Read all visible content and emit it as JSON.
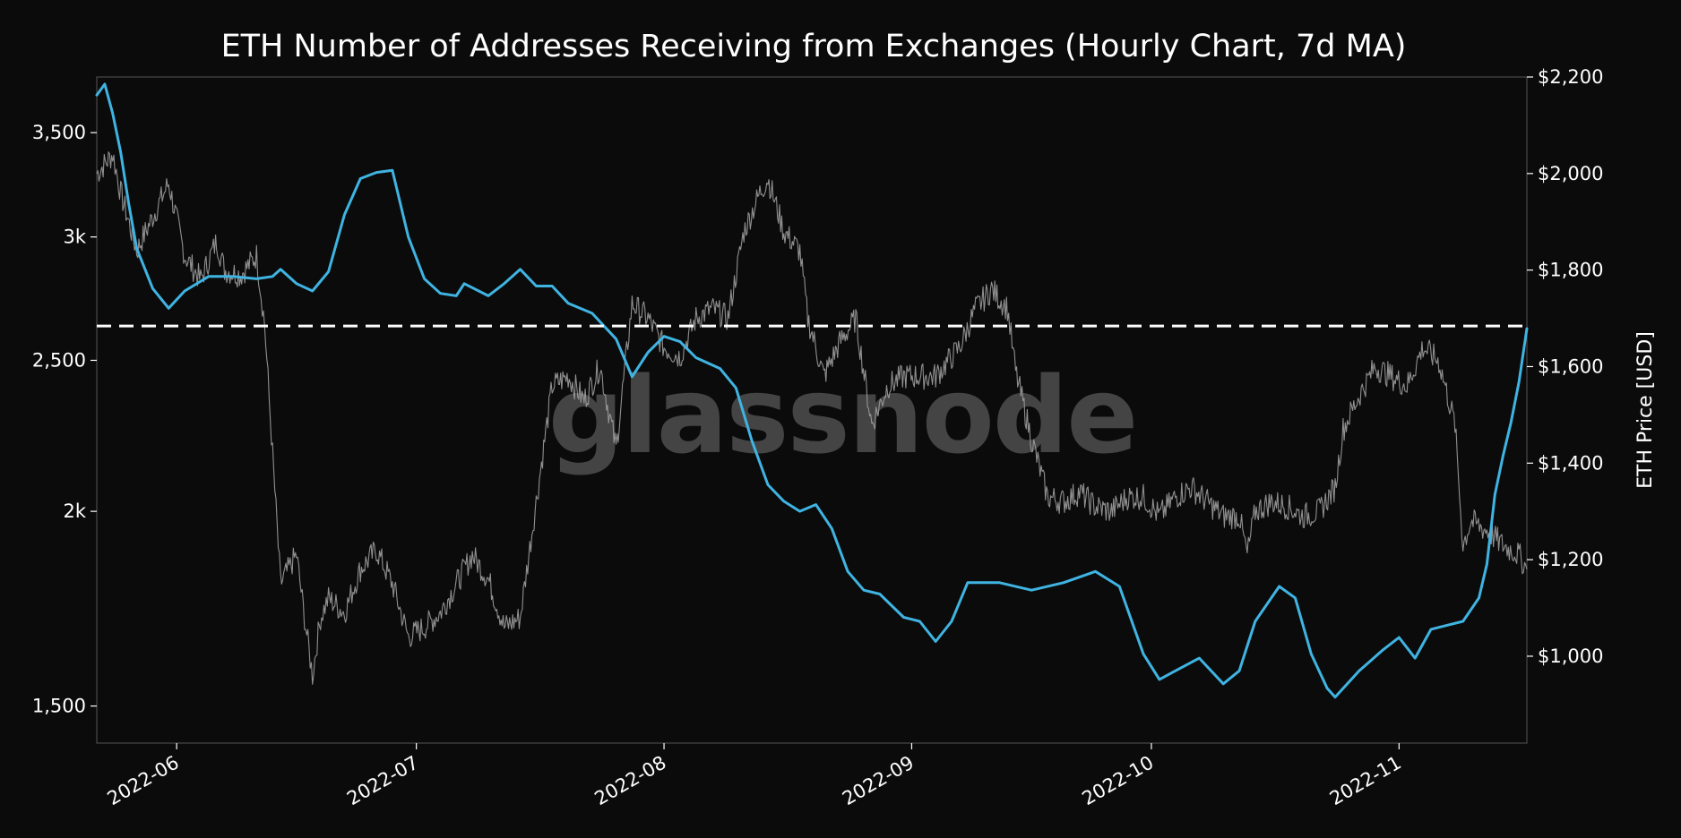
{
  "chart_data": {
    "type": "line",
    "title": "ETH Number of Addresses Receiving from Exchanges (Hourly Chart, 7d MA)",
    "watermark": "glassnode",
    "xlabel": "",
    "y_left": {
      "label": "",
      "scale": "log",
      "range": [
        1420,
        3800
      ],
      "ticks": [
        1500,
        2000,
        2500,
        3000,
        3500
      ],
      "tick_labels": [
        "1,500",
        "2k",
        "2,500",
        "3k",
        "3,500"
      ]
    },
    "y_right": {
      "label": "ETH Price [USD]",
      "scale": "linear",
      "range": [
        820,
        2200
      ],
      "ticks": [
        1000,
        1200,
        1400,
        1600,
        1800,
        2000,
        2200
      ],
      "tick_labels": [
        "$1,000",
        "$1,200",
        "$1,400",
        "$1,600",
        "$1,800",
        "$2,000",
        "$2,200"
      ]
    },
    "x_range": [
      "2022-05-22",
      "2022-11-17"
    ],
    "x_ticks": [
      "2022-06-01",
      "2022-07-01",
      "2022-08-01",
      "2022-09-01",
      "2022-10-01",
      "2022-11-01"
    ],
    "x_tick_labels": [
      "2022-06",
      "2022-07",
      "2022-08",
      "2022-09",
      "2022-10",
      "2022-11"
    ],
    "reference_line": {
      "axis": "left",
      "value": 2630,
      "style": "dashed",
      "color": "#ffffff"
    },
    "series": [
      {
        "axis": "left",
        "color": "#3fb4e2",
        "points": [
          [
            "2022-05-22",
            3700
          ],
          [
            "2022-05-23",
            3760
          ],
          [
            "2022-05-24",
            3600
          ],
          [
            "2022-05-25",
            3400
          ],
          [
            "2022-05-26",
            3150
          ],
          [
            "2022-05-27",
            2950
          ],
          [
            "2022-05-29",
            2780
          ],
          [
            "2022-05-31",
            2700
          ],
          [
            "2022-06-02",
            2770
          ],
          [
            "2022-06-05",
            2830
          ],
          [
            "2022-06-08",
            2830
          ],
          [
            "2022-06-11",
            2820
          ],
          [
            "2022-06-13",
            2830
          ],
          [
            "2022-06-14",
            2860
          ],
          [
            "2022-06-16",
            2800
          ],
          [
            "2022-06-18",
            2770
          ],
          [
            "2022-06-20",
            2850
          ],
          [
            "2022-06-22",
            3100
          ],
          [
            "2022-06-24",
            3270
          ],
          [
            "2022-06-26",
            3300
          ],
          [
            "2022-06-28",
            3310
          ],
          [
            "2022-06-30",
            3000
          ],
          [
            "2022-07-02",
            2820
          ],
          [
            "2022-07-04",
            2760
          ],
          [
            "2022-07-06",
            2750
          ],
          [
            "2022-07-07",
            2800
          ],
          [
            "2022-07-10",
            2750
          ],
          [
            "2022-07-12",
            2800
          ],
          [
            "2022-07-14",
            2860
          ],
          [
            "2022-07-16",
            2790
          ],
          [
            "2022-07-18",
            2790
          ],
          [
            "2022-07-20",
            2720
          ],
          [
            "2022-07-23",
            2680
          ],
          [
            "2022-07-26",
            2580
          ],
          [
            "2022-07-28",
            2440
          ],
          [
            "2022-07-30",
            2530
          ],
          [
            "2022-08-01",
            2590
          ],
          [
            "2022-08-03",
            2570
          ],
          [
            "2022-08-05",
            2510
          ],
          [
            "2022-08-08",
            2470
          ],
          [
            "2022-08-10",
            2400
          ],
          [
            "2022-08-12",
            2220
          ],
          [
            "2022-08-14",
            2080
          ],
          [
            "2022-08-16",
            2030
          ],
          [
            "2022-08-18",
            2000
          ],
          [
            "2022-08-20",
            2020
          ],
          [
            "2022-08-22",
            1950
          ],
          [
            "2022-08-24",
            1830
          ],
          [
            "2022-08-26",
            1780
          ],
          [
            "2022-08-28",
            1770
          ],
          [
            "2022-08-31",
            1710
          ],
          [
            "2022-09-02",
            1700
          ],
          [
            "2022-09-04",
            1650
          ],
          [
            "2022-09-06",
            1700
          ],
          [
            "2022-09-08",
            1800
          ],
          [
            "2022-09-12",
            1800
          ],
          [
            "2022-09-16",
            1780
          ],
          [
            "2022-09-20",
            1800
          ],
          [
            "2022-09-24",
            1830
          ],
          [
            "2022-09-27",
            1790
          ],
          [
            "2022-09-30",
            1620
          ],
          [
            "2022-10-02",
            1560
          ],
          [
            "2022-10-04",
            1580
          ],
          [
            "2022-10-07",
            1610
          ],
          [
            "2022-10-10",
            1550
          ],
          [
            "2022-10-12",
            1580
          ],
          [
            "2022-10-14",
            1700
          ],
          [
            "2022-10-17",
            1790
          ],
          [
            "2022-10-19",
            1760
          ],
          [
            "2022-10-21",
            1620
          ],
          [
            "2022-10-23",
            1540
          ],
          [
            "2022-10-24",
            1520
          ],
          [
            "2022-10-27",
            1580
          ],
          [
            "2022-10-30",
            1630
          ],
          [
            "2022-11-01",
            1660
          ],
          [
            "2022-11-03",
            1610
          ],
          [
            "2022-11-05",
            1680
          ],
          [
            "2022-11-07",
            1690
          ],
          [
            "2022-11-09",
            1700
          ],
          [
            "2022-11-11",
            1760
          ],
          [
            "2022-11-12",
            1850
          ],
          [
            "2022-11-13",
            2050
          ],
          [
            "2022-11-14",
            2170
          ],
          [
            "2022-11-15",
            2280
          ],
          [
            "2022-11-16",
            2420
          ],
          [
            "2022-11-17",
            2620
          ]
        ]
      },
      {
        "axis": "right",
        "name": "ETH Price [USD]",
        "color": "#9e9e9e",
        "points": [
          [
            "2022-05-22",
            2000
          ],
          [
            "2022-05-24",
            2040
          ],
          [
            "2022-05-25",
            1960
          ],
          [
            "2022-05-27",
            1840
          ],
          [
            "2022-05-29",
            1910
          ],
          [
            "2022-05-31",
            1980
          ],
          [
            "2022-06-02",
            1830
          ],
          [
            "2022-06-04",
            1780
          ],
          [
            "2022-06-06",
            1860
          ],
          [
            "2022-06-07",
            1800
          ],
          [
            "2022-06-09",
            1790
          ],
          [
            "2022-06-11",
            1830
          ],
          [
            "2022-06-12",
            1690
          ],
          [
            "2022-06-13",
            1420
          ],
          [
            "2022-06-14",
            1150
          ],
          [
            "2022-06-16",
            1210
          ],
          [
            "2022-06-17",
            1080
          ],
          [
            "2022-06-18",
            960
          ],
          [
            "2022-06-19",
            1080
          ],
          [
            "2022-06-20",
            1120
          ],
          [
            "2022-06-22",
            1090
          ],
          [
            "2022-06-24",
            1180
          ],
          [
            "2022-06-26",
            1220
          ],
          [
            "2022-06-28",
            1150
          ],
          [
            "2022-06-30",
            1040
          ],
          [
            "2022-07-02",
            1060
          ],
          [
            "2022-07-04",
            1090
          ],
          [
            "2022-07-06",
            1150
          ],
          [
            "2022-07-08",
            1210
          ],
          [
            "2022-07-10",
            1160
          ],
          [
            "2022-07-12",
            1060
          ],
          [
            "2022-07-14",
            1080
          ],
          [
            "2022-07-16",
            1320
          ],
          [
            "2022-07-18",
            1560
          ],
          [
            "2022-07-20",
            1580
          ],
          [
            "2022-07-22",
            1530
          ],
          [
            "2022-07-24",
            1600
          ],
          [
            "2022-07-26",
            1430
          ],
          [
            "2022-07-28",
            1730
          ],
          [
            "2022-07-30",
            1700
          ],
          [
            "2022-08-01",
            1640
          ],
          [
            "2022-08-03",
            1620
          ],
          [
            "2022-08-05",
            1700
          ],
          [
            "2022-08-07",
            1720
          ],
          [
            "2022-08-09",
            1700
          ],
          [
            "2022-08-11",
            1880
          ],
          [
            "2022-08-13",
            1960
          ],
          [
            "2022-08-14",
            1990
          ],
          [
            "2022-08-16",
            1880
          ],
          [
            "2022-08-18",
            1840
          ],
          [
            "2022-08-19",
            1700
          ],
          [
            "2022-08-21",
            1580
          ],
          [
            "2022-08-23",
            1650
          ],
          [
            "2022-08-25",
            1700
          ],
          [
            "2022-08-27",
            1480
          ],
          [
            "2022-08-29",
            1560
          ],
          [
            "2022-08-31",
            1580
          ],
          [
            "2022-09-02",
            1580
          ],
          [
            "2022-09-04",
            1580
          ],
          [
            "2022-09-06",
            1620
          ],
          [
            "2022-09-07",
            1640
          ],
          [
            "2022-09-09",
            1720
          ],
          [
            "2022-09-11",
            1760
          ],
          [
            "2022-09-13",
            1720
          ],
          [
            "2022-09-14",
            1590
          ],
          [
            "2022-09-16",
            1450
          ],
          [
            "2022-09-18",
            1330
          ],
          [
            "2022-09-20",
            1320
          ],
          [
            "2022-09-22",
            1340
          ],
          [
            "2022-09-24",
            1310
          ],
          [
            "2022-09-26",
            1300
          ],
          [
            "2022-09-28",
            1330
          ],
          [
            "2022-09-30",
            1330
          ],
          [
            "2022-10-02",
            1290
          ],
          [
            "2022-10-04",
            1330
          ],
          [
            "2022-10-06",
            1350
          ],
          [
            "2022-10-08",
            1320
          ],
          [
            "2022-10-10",
            1290
          ],
          [
            "2022-10-12",
            1290
          ],
          [
            "2022-10-13",
            1210
          ],
          [
            "2022-10-14",
            1300
          ],
          [
            "2022-10-16",
            1320
          ],
          [
            "2022-10-18",
            1310
          ],
          [
            "2022-10-20",
            1290
          ],
          [
            "2022-10-22",
            1300
          ],
          [
            "2022-10-24",
            1350
          ],
          [
            "2022-10-25",
            1470
          ],
          [
            "2022-10-27",
            1540
          ],
          [
            "2022-10-29",
            1600
          ],
          [
            "2022-10-31",
            1580
          ],
          [
            "2022-11-02",
            1560
          ],
          [
            "2022-11-04",
            1640
          ],
          [
            "2022-11-06",
            1610
          ],
          [
            "2022-11-08",
            1480
          ],
          [
            "2022-11-09",
            1230
          ],
          [
            "2022-11-10",
            1280
          ],
          [
            "2022-11-12",
            1260
          ],
          [
            "2022-11-14",
            1230
          ],
          [
            "2022-11-16",
            1210
          ],
          [
            "2022-11-17",
            1180
          ]
        ]
      }
    ]
  }
}
